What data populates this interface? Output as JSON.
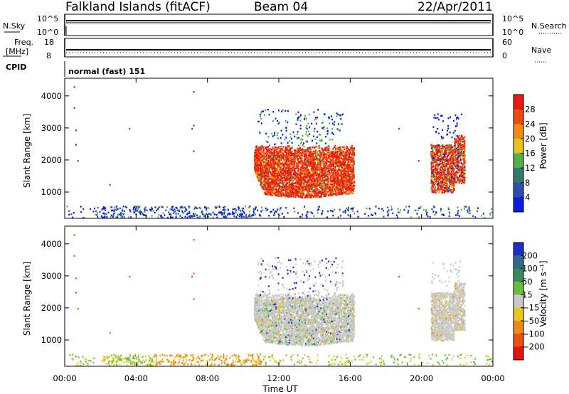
{
  "header": {
    "station": "Falkland Islands (fitACF)",
    "beam": "Beam 04",
    "date": "22/Apr/2011"
  },
  "noise_panel": {
    "left_label": "N.Sky",
    "right_label": "N.Search",
    "left_ticks": [
      "10^5",
      "10^0"
    ],
    "right_ticks": [
      "10^5",
      "10^0"
    ]
  },
  "freq_panel": {
    "left_label_1": "Freq.",
    "left_label_2": "[MHz]",
    "right_label": "Nave",
    "left_ticks": [
      "18",
      "8"
    ],
    "right_ticks": [
      "60",
      "0"
    ]
  },
  "cpid": {
    "label": "CPID",
    "value": "normal (fast) 151"
  },
  "chart_data": [
    {
      "type": "heatmap",
      "name": "power",
      "ylabel": "Slant Range [km]",
      "yticks": [
        1000,
        2000,
        3000,
        4000
      ],
      "ylim": [
        180,
        4550
      ],
      "xlim": [
        0,
        24
      ],
      "colorbar": {
        "label": "Power [dB]",
        "ticks": [
          "4",
          "8",
          "12",
          "16",
          "20",
          "24",
          "28"
        ],
        "colors": [
          "#0a1ee0",
          "#2a4fb0",
          "#2f7a6a",
          "#55b04a",
          "#e8c21a",
          "#f08a10",
          "#ee4a10",
          "#e81a10"
        ]
      }
    },
    {
      "type": "heatmap",
      "name": "velocity",
      "ylabel": "Slant Range [km]",
      "yticks": [
        1000,
        2000,
        3000,
        4000
      ],
      "ylim": [
        180,
        4550
      ],
      "xlim": [
        0,
        24
      ],
      "colorbar": {
        "label": "Velocity [m s⁻¹]",
        "ticks": [
          "200",
          "100",
          "50",
          "15",
          "−15",
          "−50",
          "−100",
          "−200"
        ],
        "colors": [
          "#1a2ec8",
          "#2f6a8a",
          "#3a8a60",
          "#66c040",
          "#c8c8c8",
          "#e8c81a",
          "#f08a10",
          "#ee5010",
          "#e81010"
        ]
      }
    }
  ],
  "xaxis": {
    "label": "Time UT",
    "ticks": [
      "00:00",
      "04:00",
      "08:00",
      "12:00",
      "16:00",
      "20:00",
      "00:00"
    ]
  }
}
